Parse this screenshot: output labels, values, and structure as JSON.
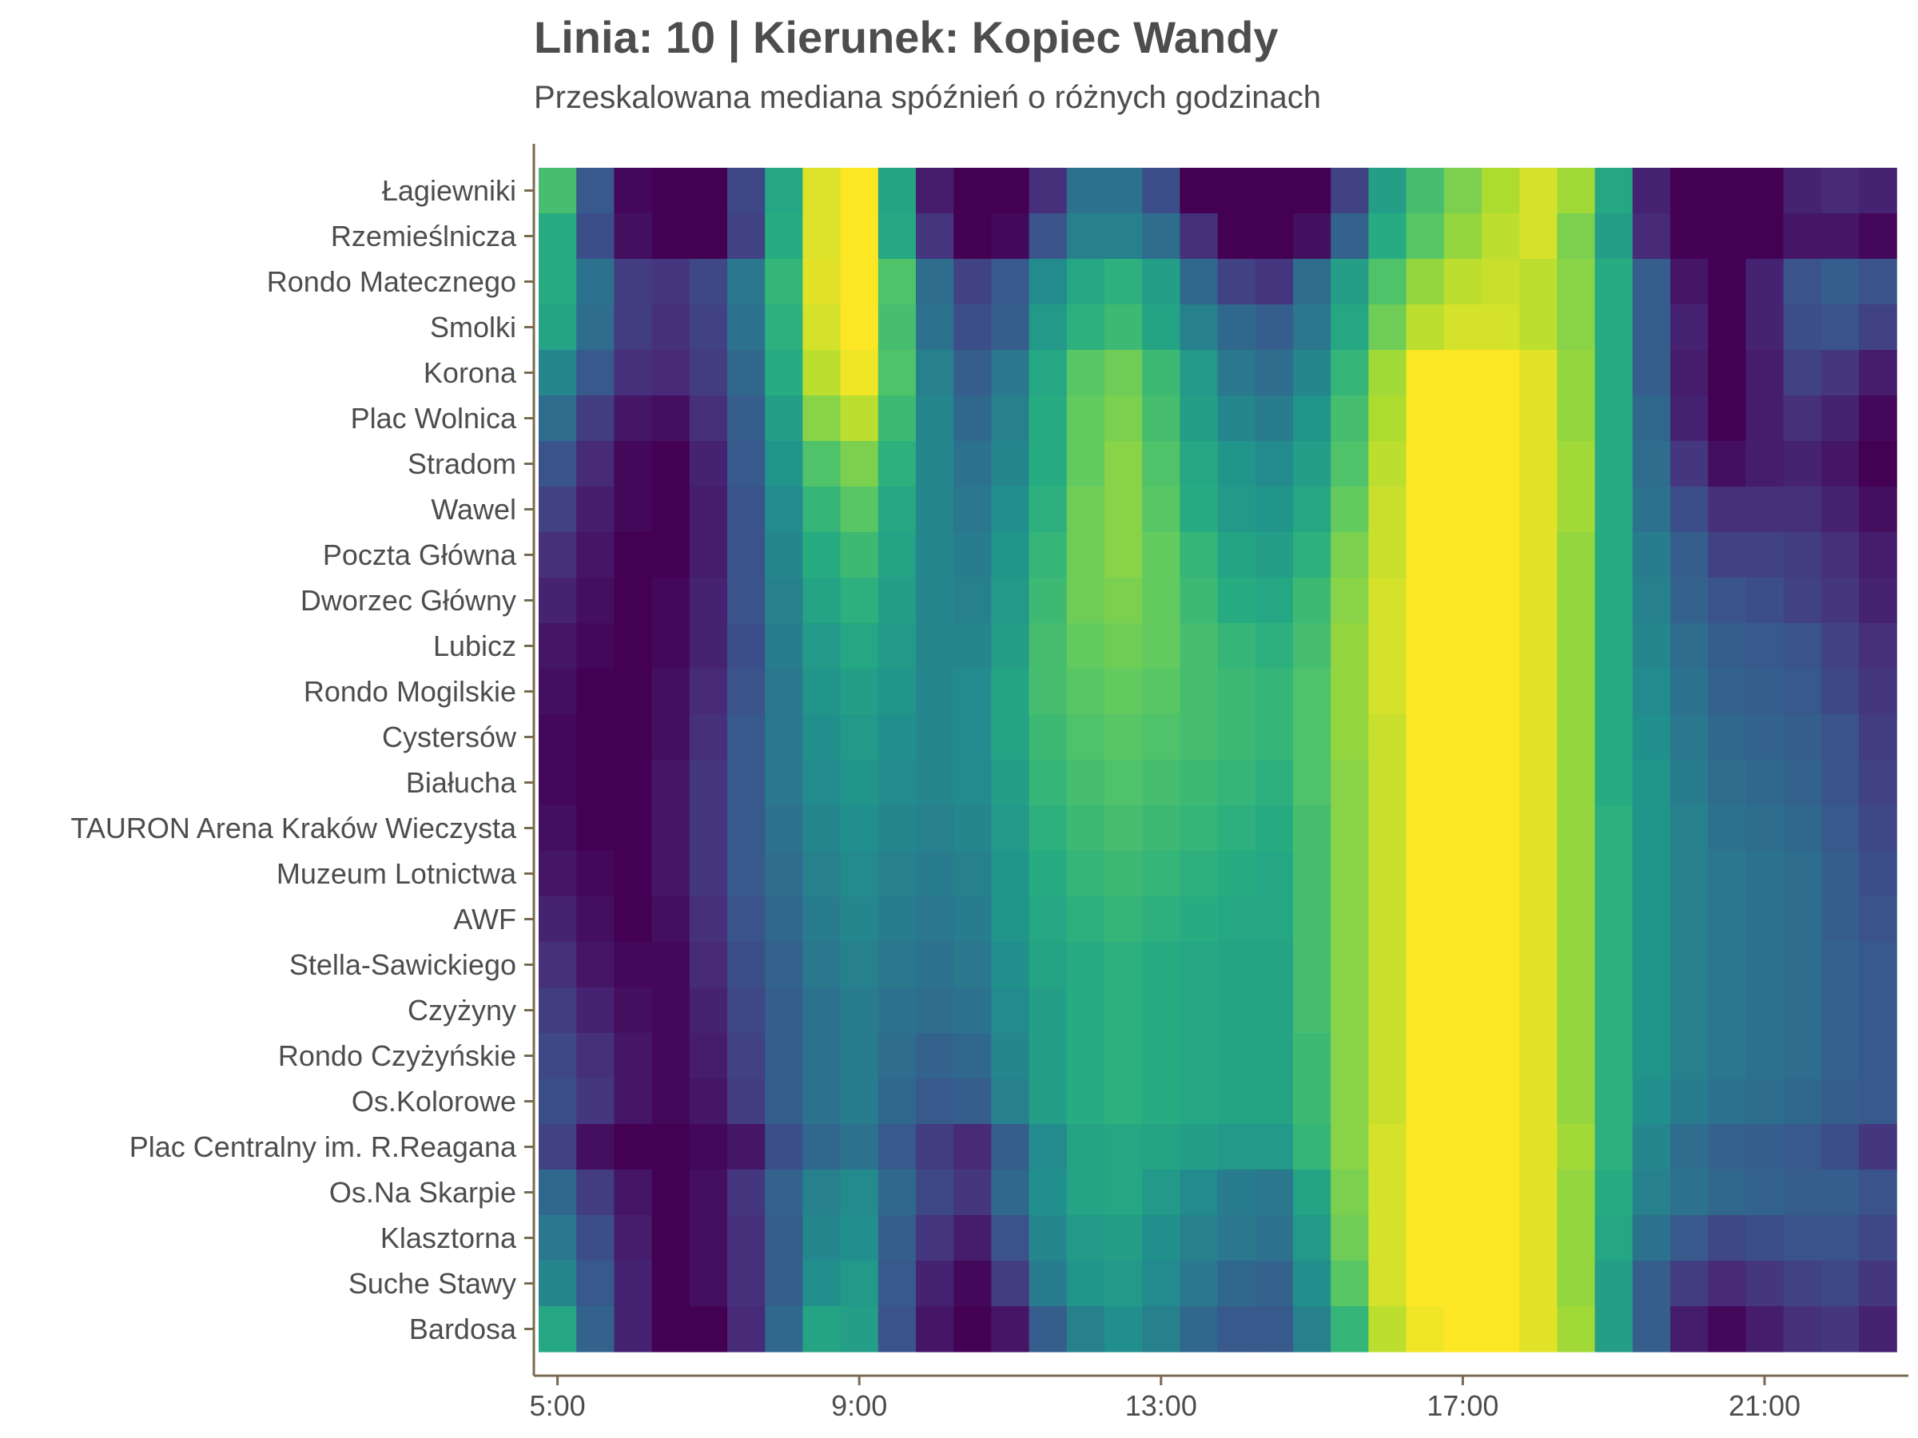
{
  "title": "Linia: 10 | Kierunek: Kopiec Wandy",
  "subtitle": "Przeskalowana mediana spóźnień o różnych godzinach",
  "colors": {
    "axis": "#7a6a50",
    "text": "#4d4d4d",
    "palette": "viridis"
  },
  "chart_data": {
    "type": "heatmap",
    "title": "Linia: 10 | Kierunek: Kopiec Wandy",
    "subtitle": "Przeskalowana mediana spóźnień o różnych godzinach",
    "xlabel": "",
    "ylabel": "",
    "x_ticks": [
      "5:00",
      "9:00",
      "13:00",
      "17:00",
      "21:00"
    ],
    "x_hours": [
      5,
      5.5,
      6,
      6.5,
      7,
      7.5,
      8,
      8.5,
      9,
      9.5,
      10,
      10.5,
      11,
      11.5,
      12,
      12.5,
      13,
      13.5,
      14,
      14.5,
      15,
      15.5,
      16,
      16.5,
      17,
      17.5,
      18,
      18.5,
      19,
      19.5,
      20,
      20.5,
      21,
      21.5,
      22,
      22.5
    ],
    "stops": [
      "Łagiewniki",
      "Rzemieślnicza",
      "Rondo Matecznego",
      "Smolki",
      "Korona",
      "Plac Wolnica",
      "Stradom",
      "Wawel",
      "Poczta Główna",
      "Dworzec Główny",
      "Lubicz",
      "Rondo Mogilskie",
      "Cystersów",
      "Białucha",
      "TAURON Arena Kraków Wieczysta",
      "Muzeum Lotnictwa",
      "AWF",
      "Stella-Sawickiego",
      "Czyżyny",
      "Rondo Czyżyńskie",
      "Os.Kolorowe",
      "Plac Centralny im. R.Reagana",
      "Os.Na Skarpie",
      "Klasztorna",
      "Suche Stawy",
      "Bardosa"
    ],
    "value_range": [
      0,
      1
    ],
    "values": [
      [
        0.7,
        0.28,
        0.02,
        0.0,
        0.0,
        0.22,
        0.6,
        0.95,
        1.0,
        0.58,
        0.08,
        0.0,
        0.0,
        0.14,
        0.38,
        0.38,
        0.24,
        0.0,
        0.0,
        0.0,
        0.0,
        0.2,
        0.56,
        0.7,
        0.8,
        0.88,
        0.94,
        0.86,
        0.6,
        0.1,
        0.0,
        0.0,
        0.0,
        0.1,
        0.12,
        0.1
      ],
      [
        0.62,
        0.24,
        0.04,
        0.0,
        0.0,
        0.2,
        0.62,
        0.95,
        1.0,
        0.6,
        0.16,
        0.0,
        0.02,
        0.26,
        0.44,
        0.44,
        0.36,
        0.14,
        0.0,
        0.0,
        0.04,
        0.32,
        0.62,
        0.74,
        0.84,
        0.9,
        0.94,
        0.8,
        0.56,
        0.12,
        0.0,
        0.0,
        0.0,
        0.06,
        0.06,
        0.02
      ],
      [
        0.62,
        0.38,
        0.18,
        0.16,
        0.22,
        0.4,
        0.66,
        0.96,
        1.0,
        0.72,
        0.36,
        0.2,
        0.28,
        0.48,
        0.6,
        0.64,
        0.56,
        0.34,
        0.2,
        0.16,
        0.36,
        0.56,
        0.72,
        0.84,
        0.9,
        0.92,
        0.9,
        0.82,
        0.62,
        0.3,
        0.06,
        0.0,
        0.1,
        0.26,
        0.3,
        0.26
      ],
      [
        0.58,
        0.36,
        0.18,
        0.14,
        0.2,
        0.38,
        0.64,
        0.94,
        1.0,
        0.7,
        0.38,
        0.24,
        0.3,
        0.54,
        0.64,
        0.68,
        0.58,
        0.44,
        0.34,
        0.3,
        0.4,
        0.6,
        0.78,
        0.9,
        0.94,
        0.94,
        0.9,
        0.82,
        0.62,
        0.3,
        0.1,
        0.0,
        0.1,
        0.24,
        0.26,
        0.2
      ],
      [
        0.46,
        0.28,
        0.14,
        0.12,
        0.18,
        0.34,
        0.62,
        0.9,
        0.98,
        0.72,
        0.44,
        0.3,
        0.4,
        0.6,
        0.74,
        0.78,
        0.68,
        0.54,
        0.4,
        0.36,
        0.46,
        0.66,
        0.86,
        1.0,
        1.0,
        1.0,
        0.96,
        0.84,
        0.62,
        0.3,
        0.08,
        0.0,
        0.08,
        0.2,
        0.16,
        0.08
      ],
      [
        0.36,
        0.18,
        0.06,
        0.04,
        0.14,
        0.3,
        0.56,
        0.82,
        0.9,
        0.68,
        0.46,
        0.34,
        0.44,
        0.62,
        0.76,
        0.8,
        0.7,
        0.56,
        0.46,
        0.42,
        0.52,
        0.7,
        0.88,
        1.0,
        1.0,
        1.0,
        0.96,
        0.84,
        0.62,
        0.34,
        0.1,
        0.0,
        0.08,
        0.14,
        0.1,
        0.02
      ],
      [
        0.26,
        0.12,
        0.02,
        0.0,
        0.1,
        0.28,
        0.52,
        0.72,
        0.8,
        0.64,
        0.46,
        0.38,
        0.46,
        0.62,
        0.76,
        0.82,
        0.72,
        0.6,
        0.52,
        0.48,
        0.56,
        0.72,
        0.9,
        1.0,
        1.0,
        1.0,
        0.96,
        0.86,
        0.62,
        0.36,
        0.16,
        0.04,
        0.08,
        0.1,
        0.06,
        0.0
      ],
      [
        0.2,
        0.08,
        0.02,
        0.0,
        0.08,
        0.26,
        0.48,
        0.66,
        0.74,
        0.6,
        0.46,
        0.4,
        0.5,
        0.64,
        0.78,
        0.82,
        0.74,
        0.62,
        0.54,
        0.52,
        0.6,
        0.76,
        0.92,
        1.0,
        1.0,
        1.0,
        0.96,
        0.86,
        0.62,
        0.38,
        0.24,
        0.14,
        0.14,
        0.14,
        0.1,
        0.04
      ],
      [
        0.14,
        0.06,
        0.0,
        0.0,
        0.08,
        0.26,
        0.46,
        0.62,
        0.68,
        0.58,
        0.46,
        0.42,
        0.52,
        0.66,
        0.78,
        0.82,
        0.76,
        0.66,
        0.58,
        0.56,
        0.64,
        0.8,
        0.92,
        1.0,
        1.0,
        1.0,
        0.96,
        0.84,
        0.62,
        0.42,
        0.3,
        0.2,
        0.2,
        0.18,
        0.14,
        0.08
      ],
      [
        0.1,
        0.04,
        0.0,
        0.02,
        0.1,
        0.26,
        0.44,
        0.58,
        0.64,
        0.56,
        0.46,
        0.44,
        0.54,
        0.68,
        0.78,
        0.8,
        0.76,
        0.68,
        0.62,
        0.6,
        0.68,
        0.82,
        0.94,
        1.0,
        1.0,
        1.0,
        0.96,
        0.84,
        0.62,
        0.44,
        0.32,
        0.26,
        0.24,
        0.2,
        0.16,
        0.1
      ],
      [
        0.06,
        0.02,
        0.0,
        0.02,
        0.1,
        0.24,
        0.42,
        0.54,
        0.6,
        0.54,
        0.46,
        0.46,
        0.56,
        0.7,
        0.76,
        0.78,
        0.76,
        0.7,
        0.66,
        0.64,
        0.7,
        0.84,
        0.94,
        1.0,
        1.0,
        1.0,
        0.96,
        0.84,
        0.62,
        0.46,
        0.36,
        0.3,
        0.28,
        0.26,
        0.2,
        0.14
      ],
      [
        0.04,
        0.0,
        0.0,
        0.04,
        0.12,
        0.26,
        0.4,
        0.52,
        0.56,
        0.52,
        0.46,
        0.48,
        0.58,
        0.7,
        0.74,
        0.76,
        0.74,
        0.7,
        0.68,
        0.66,
        0.72,
        0.84,
        0.94,
        1.0,
        1.0,
        1.0,
        0.96,
        0.84,
        0.62,
        0.48,
        0.38,
        0.32,
        0.3,
        0.28,
        0.22,
        0.16
      ],
      [
        0.02,
        0.0,
        0.0,
        0.04,
        0.14,
        0.28,
        0.4,
        0.5,
        0.54,
        0.5,
        0.46,
        0.48,
        0.58,
        0.68,
        0.72,
        0.74,
        0.72,
        0.7,
        0.68,
        0.66,
        0.72,
        0.84,
        0.92,
        1.0,
        1.0,
        1.0,
        0.96,
        0.84,
        0.62,
        0.5,
        0.4,
        0.34,
        0.32,
        0.3,
        0.26,
        0.18
      ],
      [
        0.02,
        0.0,
        0.0,
        0.06,
        0.16,
        0.28,
        0.4,
        0.48,
        0.52,
        0.48,
        0.46,
        0.48,
        0.56,
        0.66,
        0.7,
        0.72,
        0.7,
        0.68,
        0.66,
        0.64,
        0.72,
        0.82,
        0.92,
        1.0,
        1.0,
        1.0,
        0.96,
        0.84,
        0.62,
        0.52,
        0.42,
        0.36,
        0.34,
        0.32,
        0.26,
        0.2
      ],
      [
        0.04,
        0.0,
        0.0,
        0.06,
        0.16,
        0.28,
        0.38,
        0.46,
        0.5,
        0.46,
        0.44,
        0.46,
        0.54,
        0.64,
        0.68,
        0.7,
        0.68,
        0.66,
        0.64,
        0.62,
        0.7,
        0.82,
        0.92,
        1.0,
        1.0,
        1.0,
        0.96,
        0.84,
        0.64,
        0.52,
        0.44,
        0.38,
        0.36,
        0.34,
        0.28,
        0.22
      ],
      [
        0.06,
        0.02,
        0.0,
        0.06,
        0.16,
        0.28,
        0.36,
        0.44,
        0.48,
        0.44,
        0.42,
        0.44,
        0.52,
        0.62,
        0.66,
        0.68,
        0.66,
        0.64,
        0.62,
        0.6,
        0.7,
        0.82,
        0.92,
        1.0,
        1.0,
        1.0,
        0.96,
        0.84,
        0.64,
        0.52,
        0.44,
        0.4,
        0.38,
        0.36,
        0.3,
        0.24
      ],
      [
        0.1,
        0.04,
        0.0,
        0.04,
        0.14,
        0.26,
        0.34,
        0.42,
        0.46,
        0.42,
        0.4,
        0.42,
        0.52,
        0.6,
        0.64,
        0.66,
        0.64,
        0.62,
        0.6,
        0.6,
        0.7,
        0.82,
        0.92,
        1.0,
        1.0,
        1.0,
        0.96,
        0.84,
        0.64,
        0.52,
        0.44,
        0.4,
        0.38,
        0.36,
        0.3,
        0.26
      ],
      [
        0.14,
        0.06,
        0.02,
        0.02,
        0.12,
        0.24,
        0.32,
        0.4,
        0.44,
        0.4,
        0.38,
        0.4,
        0.5,
        0.58,
        0.62,
        0.64,
        0.62,
        0.6,
        0.58,
        0.58,
        0.7,
        0.82,
        0.92,
        1.0,
        1.0,
        1.0,
        0.96,
        0.84,
        0.64,
        0.52,
        0.44,
        0.4,
        0.38,
        0.36,
        0.32,
        0.28
      ],
      [
        0.18,
        0.1,
        0.04,
        0.02,
        0.1,
        0.22,
        0.3,
        0.38,
        0.42,
        0.38,
        0.36,
        0.38,
        0.48,
        0.56,
        0.62,
        0.64,
        0.62,
        0.6,
        0.58,
        0.58,
        0.7,
        0.82,
        0.92,
        1.0,
        1.0,
        1.0,
        0.96,
        0.84,
        0.64,
        0.52,
        0.44,
        0.4,
        0.38,
        0.36,
        0.32,
        0.28
      ],
      [
        0.22,
        0.14,
        0.06,
        0.02,
        0.08,
        0.2,
        0.3,
        0.38,
        0.42,
        0.36,
        0.32,
        0.34,
        0.46,
        0.56,
        0.62,
        0.64,
        0.62,
        0.6,
        0.58,
        0.58,
        0.68,
        0.82,
        0.92,
        1.0,
        1.0,
        1.0,
        0.96,
        0.84,
        0.64,
        0.52,
        0.44,
        0.4,
        0.38,
        0.36,
        0.32,
        0.28
      ],
      [
        0.24,
        0.16,
        0.06,
        0.02,
        0.06,
        0.18,
        0.3,
        0.38,
        0.42,
        0.34,
        0.28,
        0.3,
        0.44,
        0.56,
        0.62,
        0.64,
        0.62,
        0.6,
        0.58,
        0.58,
        0.68,
        0.82,
        0.92,
        1.0,
        1.0,
        1.0,
        0.96,
        0.84,
        0.64,
        0.5,
        0.42,
        0.38,
        0.36,
        0.34,
        0.3,
        0.28
      ],
      [
        0.2,
        0.04,
        0.0,
        0.0,
        0.02,
        0.06,
        0.24,
        0.34,
        0.38,
        0.28,
        0.18,
        0.12,
        0.3,
        0.48,
        0.58,
        0.6,
        0.58,
        0.56,
        0.54,
        0.54,
        0.66,
        0.82,
        0.94,
        1.0,
        1.0,
        1.0,
        0.96,
        0.86,
        0.64,
        0.46,
        0.36,
        0.32,
        0.3,
        0.28,
        0.24,
        0.16
      ],
      [
        0.34,
        0.18,
        0.06,
        0.0,
        0.04,
        0.16,
        0.32,
        0.44,
        0.48,
        0.34,
        0.22,
        0.16,
        0.34,
        0.5,
        0.58,
        0.6,
        0.54,
        0.48,
        0.42,
        0.4,
        0.58,
        0.8,
        0.94,
        1.0,
        1.0,
        1.0,
        0.96,
        0.84,
        0.62,
        0.44,
        0.38,
        0.34,
        0.32,
        0.3,
        0.3,
        0.26
      ],
      [
        0.4,
        0.24,
        0.08,
        0.0,
        0.04,
        0.14,
        0.3,
        0.46,
        0.5,
        0.3,
        0.16,
        0.08,
        0.26,
        0.46,
        0.54,
        0.56,
        0.5,
        0.44,
        0.4,
        0.38,
        0.54,
        0.78,
        0.94,
        1.0,
        1.0,
        1.0,
        0.96,
        0.84,
        0.6,
        0.38,
        0.28,
        0.22,
        0.24,
        0.26,
        0.26,
        0.22
      ],
      [
        0.46,
        0.28,
        0.1,
        0.0,
        0.04,
        0.14,
        0.3,
        0.5,
        0.54,
        0.28,
        0.1,
        0.02,
        0.18,
        0.42,
        0.52,
        0.54,
        0.48,
        0.4,
        0.34,
        0.32,
        0.5,
        0.74,
        0.94,
        1.0,
        1.0,
        1.0,
        0.96,
        0.84,
        0.56,
        0.3,
        0.18,
        0.12,
        0.16,
        0.2,
        0.22,
        0.16
      ],
      [
        0.6,
        0.32,
        0.1,
        0.0,
        0.0,
        0.12,
        0.34,
        0.58,
        0.56,
        0.26,
        0.06,
        0.0,
        0.06,
        0.3,
        0.44,
        0.5,
        0.44,
        0.34,
        0.28,
        0.28,
        0.44,
        0.66,
        0.9,
        0.98,
        1.0,
        1.0,
        0.96,
        0.86,
        0.56,
        0.3,
        0.08,
        0.02,
        0.08,
        0.14,
        0.16,
        0.1
      ]
    ]
  }
}
